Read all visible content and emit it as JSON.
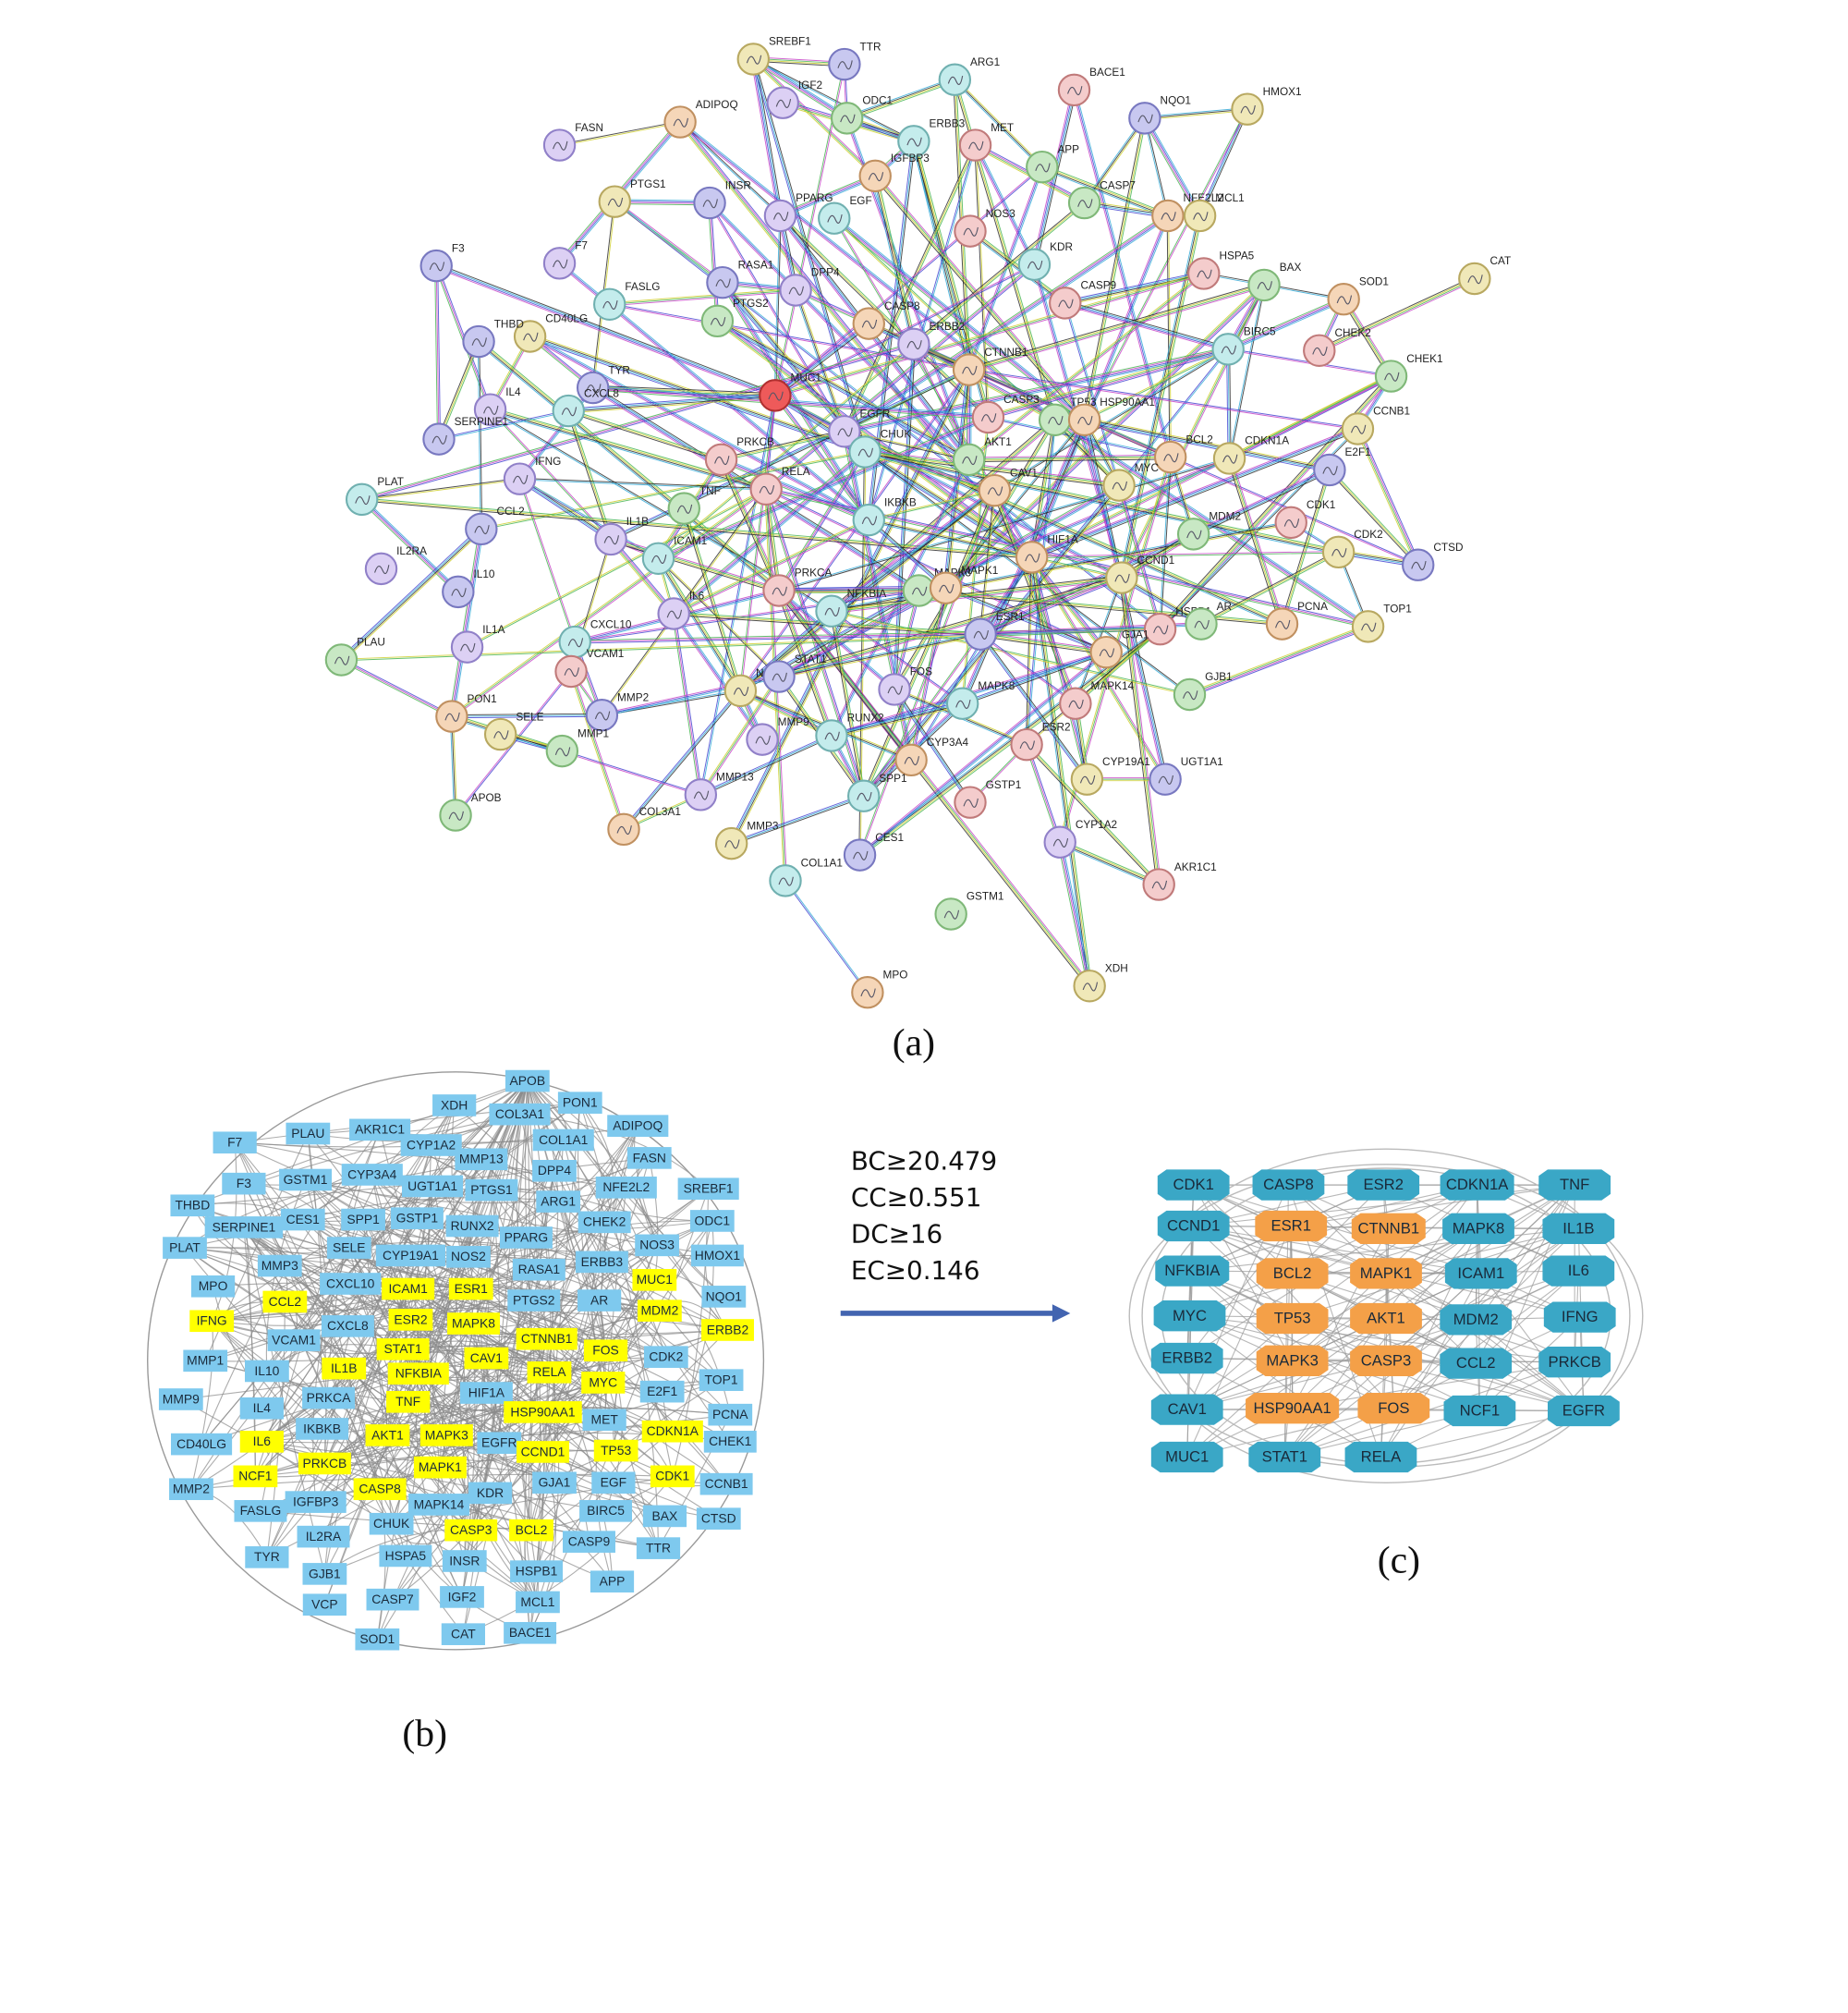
{
  "panel_a": {
    "label": "(a)",
    "nodes": [
      "SREBF1",
      "TTR",
      "IGF2",
      "ARG1",
      "BACE1",
      "ODC1",
      "ADIPOQ",
      "HMOX1",
      "NQO1",
      "FASN",
      "ERBB3",
      "MET",
      "APP",
      "IGFBP3",
      "PTGS1",
      "INSR",
      "PPARG",
      "EGF",
      "NOS3",
      "CASP7",
      "NFE2L2",
      "MCL1",
      "F3",
      "F7",
      "KDR",
      "HSPA5",
      "BAX",
      "SOD1",
      "CAT",
      "RASA1",
      "DPP4",
      "FASLG",
      "CASP9",
      "PTGS2",
      "CASP8",
      "CD40LG",
      "THBD",
      "ERBB2",
      "BIRC5",
      "CHEK2",
      "CHEK1",
      "CTNNB1",
      "MUC1",
      "TYR",
      "IL4",
      "CXCL8",
      "CASP3",
      "TP53",
      "HSP90AA1",
      "CCNB1",
      "SERPINE1",
      "EGFR",
      "CHUK",
      "PRKCB",
      "AKT1",
      "BCL2",
      "CDKN1A",
      "E2F1",
      "IFNG",
      "PLAT",
      "RELA",
      "TNF",
      "CAV1",
      "MYC",
      "CCL2",
      "IL1B",
      "IKBKB",
      "CDK1",
      "MDM2",
      "HIF1A",
      "CDK2",
      "CTSD",
      "IL2RA",
      "ICAM1",
      "PRKCA",
      "MAPK3",
      "MAPK1",
      "CCND1",
      "IL10",
      "IL6",
      "NFKBIA",
      "HSPB1",
      "AR",
      "PCNA",
      "TOP1",
      "ESR1",
      "IL1A",
      "CXCL10",
      "VCAM1",
      "PLAU",
      "GJA1",
      "NCF1",
      "STAT1",
      "FOS",
      "MAPK8",
      "MAPK14",
      "GJB1",
      "PON1",
      "SELE",
      "MMP2",
      "MMP9",
      "RUNX2",
      "ESR2",
      "MMP1",
      "CYP3A4",
      "CYP19A1",
      "UGT1A1",
      "MMP13",
      "SPP1",
      "GSTP1",
      "APOB",
      "COL3A1",
      "MMP3",
      "CES1",
      "CYP1A2",
      "COL1A1",
      "AKR1C1",
      "GSTM1",
      "MPO",
      "XDH"
    ]
  },
  "panel_b": {
    "label": "(b)",
    "groups": [
      {
        "color": "#7ec9ee",
        "nodes": [
          "APOB",
          "XDH",
          "PON1",
          "COL3A1",
          "ADIPOQ",
          "F7",
          "PLAU",
          "AKR1C1",
          "CYP1A2",
          "COL1A1",
          "FASN",
          "F3",
          "GSTM1",
          "CYP3A4",
          "UGT1A1",
          "MMP13",
          "PTGS1",
          "DPP4",
          "NFE2L2",
          "SREBF1",
          "THBD",
          "SERPINE1",
          "CES1",
          "SPP1",
          "GSTP1",
          "ARG1",
          "CHEK2",
          "RUNX2",
          "ODC1",
          "PLAT",
          "SELE",
          "CYP19A1",
          "NOS2",
          "PPARG",
          "NOS3",
          "HMOX1",
          "MMP3",
          "RASA1",
          "ERBB3",
          "MPO",
          "CXCL10",
          "NQO1",
          "CXCL8",
          "PTGS2",
          "AR",
          "VCAM1",
          "CDK2",
          "MMP1",
          "IL10",
          "E2F1",
          "TOP1",
          "MMP9",
          "PRKCA",
          "HIF1A",
          "MET",
          "PCNA",
          "IL4",
          "IKBKB",
          "EGFR",
          "CHEK1",
          "CD40LG",
          "GJA1",
          "EGF",
          "CCNB1",
          "MMP2",
          "KDR",
          "IGFBP3",
          "MAPK14",
          "FASLG",
          "BIRC5",
          "BAX",
          "CTSD",
          "CHUK",
          "IL2RA",
          "CASP9",
          "TTR",
          "TYR",
          "HSPA5",
          "INSR",
          "HSPB1",
          "GJB1",
          "APP",
          "IGF2",
          "CASP7",
          "MCL1",
          "VCP",
          "CAT",
          "BACE1",
          "SOD1"
        ]
      },
      {
        "color": "#ffff00",
        "nodes": [
          "ICAM1",
          "ESR1",
          "MUC1",
          "IFNG",
          "CCL2",
          "ESR2",
          "MAPK8",
          "MDM2",
          "ERBB2",
          "STAT1",
          "CTNNB1",
          "FOS",
          "IL1B",
          "NFKBIA",
          "CAV1",
          "RELA",
          "MYC",
          "TNF",
          "HSP90AA1",
          "AKT1",
          "MAPK3",
          "CCND1",
          "TP53",
          "CDKN1A",
          "IL6",
          "PRKCB",
          "MAPK1",
          "NCF1",
          "CDK1",
          "CASP8",
          "CASP3",
          "BCL2"
        ]
      }
    ]
  },
  "criteria": [
    "BC≥20.479",
    "CC≥0.551",
    "DC≥16",
    "EC≥0.146"
  ],
  "panel_c": {
    "label": "(c)",
    "groups": [
      {
        "color": "#3aa7c6",
        "nodes": [
          "CDK1",
          "CASP8",
          "ESR2",
          "CDKN1A",
          "TNF",
          "CCND1",
          "MAPK8",
          "IL1B",
          "NFKBIA",
          "ICAM1",
          "IL6",
          "MYC",
          "MDM2",
          "IFNG",
          "ERBB2",
          "CCL2",
          "PRKCB",
          "CAV1",
          "NCF1",
          "EGFR",
          "MUC1",
          "STAT1",
          "RELA"
        ]
      },
      {
        "color": "#f4a048",
        "nodes": [
          "ESR1",
          "CTNNB1",
          "BCL2",
          "MAPK1",
          "TP53",
          "AKT1",
          "MAPK3",
          "CASP3",
          "HSP90AA1",
          "FOS"
        ]
      }
    ]
  }
}
